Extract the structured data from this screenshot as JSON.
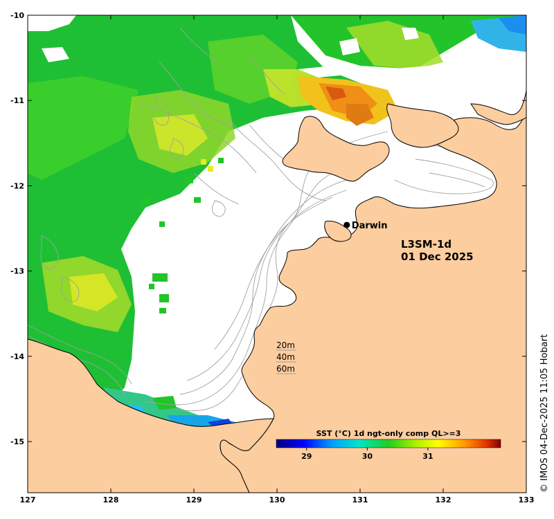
{
  "map": {
    "lon_ticks": [
      "127",
      "128",
      "129",
      "130",
      "131",
      "132",
      "133"
    ],
    "lat_ticks": [
      "-10",
      "-11",
      "-12",
      "-13",
      "-14",
      "-15"
    ],
    "lon_range": [
      127,
      133
    ],
    "lat_range": [
      -15.6,
      -10.0
    ],
    "place": {
      "name": "Darwin",
      "lon": 130.84,
      "lat": -12.46
    },
    "product_line1": "L3SM-1d",
    "product_line2": "01 Dec 2025",
    "depth_legend": [
      "20m",
      "40m",
      "60m"
    ],
    "colorbar": {
      "title": "SST (°C) 1d ngt-only comp QL>=3",
      "tick_labels": [
        "29",
        "30",
        "31"
      ],
      "tick_values": [
        29,
        30,
        31
      ],
      "range": [
        28.5,
        32.2
      ]
    },
    "credit": "© IMOS 04-Dec-2025 11:05 Hobart",
    "colors": {
      "land": "#fccd9e",
      "ocean_nodata": "#ffffff",
      "bathymetry": "#a0a0a0",
      "coast": "#000000"
    }
  }
}
